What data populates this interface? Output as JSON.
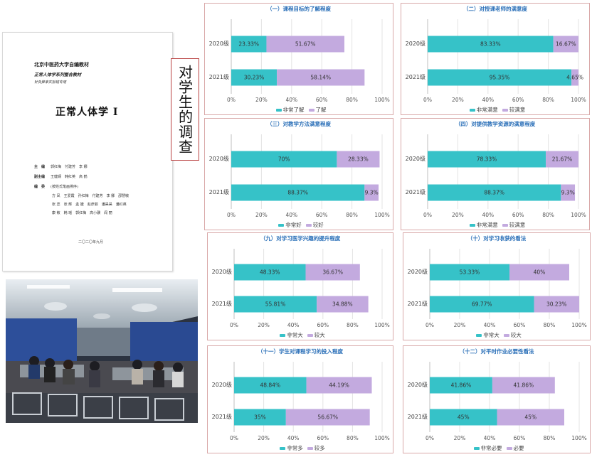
{
  "side_label": "对学生的调查",
  "document": {
    "line1": "北京中医药大学自编教材",
    "line2": "正常人体学系列整合教材",
    "line3": "针灸推拿实验班专用",
    "title": "正常人体学 I",
    "rows": [
      {
        "k": "主　编",
        "v": "郭红梅　付建芳　李 娜"
      },
      {
        "k": "副主编",
        "v": "王健娴　韩红英　高 鹤"
      },
      {
        "k": "编　委",
        "v": "(按姓氏笔画排序)"
      },
      {
        "k": "",
        "v": "方 凤　王爱霞　孙红梅　付建芳　李 娜　邵慧敏"
      },
      {
        "k": "",
        "v": "张 蕊　张 辉　孟 婕　赵彦丽　潘昊昊　潘红英"
      },
      {
        "k": "",
        "v": "康 敏　韩 瑶　郭红梅　高小骥　阎 丽"
      }
    ],
    "date": "二〇二〇年九月"
  },
  "colors": {
    "teal": "#36c2c8",
    "purple": "#c3aadf",
    "label_box": "#b94040"
  },
  "chart_data": [
    {
      "type": "bar",
      "orientation": "horizontal",
      "stacked": true,
      "title": "（一）课程目标的了解程度",
      "categories": [
        "2020级",
        "2021级"
      ],
      "series": [
        {
          "name": "非常了解",
          "values": [
            23.33,
            30.23
          ]
        },
        {
          "name": "了解",
          "values": [
            51.67,
            58.14
          ]
        }
      ],
      "xlim": [
        0,
        100
      ],
      "xticks": [
        "0%",
        "20%",
        "40%",
        "60%",
        "80%",
        "100%"
      ]
    },
    {
      "type": "bar",
      "orientation": "horizontal",
      "stacked": true,
      "title": "（二）对授课老师的满意度",
      "categories": [
        "2020级",
        "2021级"
      ],
      "series": [
        {
          "name": "非常满意",
          "values": [
            83.33,
            95.35
          ]
        },
        {
          "name": "较满意",
          "values": [
            16.67,
            4.65
          ]
        }
      ],
      "xlim": [
        0,
        100
      ],
      "xticks": [
        "0%",
        "20%",
        "40%",
        "60%",
        "80%",
        "100%"
      ]
    },
    {
      "type": "bar",
      "orientation": "horizontal",
      "stacked": true,
      "title": "（三）对教学方法满意程度",
      "categories": [
        "2020级",
        "2021级"
      ],
      "series": [
        {
          "name": "非常好",
          "values": [
            70,
            88.37
          ]
        },
        {
          "name": "较好",
          "values": [
            28.33,
            9.3
          ]
        }
      ],
      "xlim": [
        0,
        100
      ],
      "xticks": [
        "0%",
        "20%",
        "40%",
        "60%",
        "80%",
        "100%"
      ]
    },
    {
      "type": "bar",
      "orientation": "horizontal",
      "stacked": true,
      "title": "（四）对提供教学资源的满意程度",
      "categories": [
        "2020级",
        "2021级"
      ],
      "series": [
        {
          "name": "非常满意",
          "values": [
            78.33,
            88.37
          ]
        },
        {
          "name": "较满意",
          "values": [
            21.67,
            9.3
          ]
        }
      ],
      "xlim": [
        0,
        100
      ],
      "xticks": [
        "0%",
        "20%",
        "40%",
        "60%",
        "80%",
        "100%"
      ]
    },
    {
      "type": "bar",
      "orientation": "horizontal",
      "stacked": true,
      "title": "（九）对学习医学兴趣的提升程度",
      "categories": [
        "2020级",
        "2021级"
      ],
      "series": [
        {
          "name": "非常大",
          "values": [
            48.33,
            55.81
          ]
        },
        {
          "name": "较大",
          "values": [
            36.67,
            34.88
          ]
        }
      ],
      "xlim": [
        0,
        100
      ],
      "xticks": [
        "0%",
        "20%",
        "40%",
        "60%",
        "80%",
        "100%"
      ]
    },
    {
      "type": "bar",
      "orientation": "horizontal",
      "stacked": true,
      "title": "（十）对学习收获的看法",
      "categories": [
        "2020级",
        "2021级"
      ],
      "series": [
        {
          "name": "非常大",
          "values": [
            53.33,
            69.77
          ]
        },
        {
          "name": "较大",
          "values": [
            40,
            30.23
          ]
        }
      ],
      "xlim": [
        0,
        100
      ],
      "xticks": [
        "0%",
        "20%",
        "40%",
        "60%",
        "80%",
        "100%"
      ]
    },
    {
      "type": "bar",
      "orientation": "horizontal",
      "stacked": true,
      "title": "（十一）学生对课程学习的投入程度",
      "categories": [
        "2020级",
        "2021级"
      ],
      "series": [
        {
          "name": "非常多",
          "values": [
            48.84,
            35
          ]
        },
        {
          "name": "较多",
          "values": [
            44.19,
            56.67
          ]
        }
      ],
      "xlim": [
        0,
        100
      ],
      "xticks": [
        "0%",
        "20%",
        "40%",
        "60%",
        "80%",
        "100%"
      ]
    },
    {
      "type": "bar",
      "orientation": "horizontal",
      "stacked": true,
      "title": "（十二）对平时作业必要性看法",
      "categories": [
        "2020级",
        "2021级"
      ],
      "series": [
        {
          "name": "非常必要",
          "values": [
            41.86,
            45
          ]
        },
        {
          "name": "必要",
          "values": [
            41.86,
            45
          ]
        }
      ],
      "xlim": [
        0,
        100
      ],
      "xticks": [
        "0%",
        "20%",
        "40%",
        "60%",
        "80%",
        "100%"
      ]
    }
  ]
}
